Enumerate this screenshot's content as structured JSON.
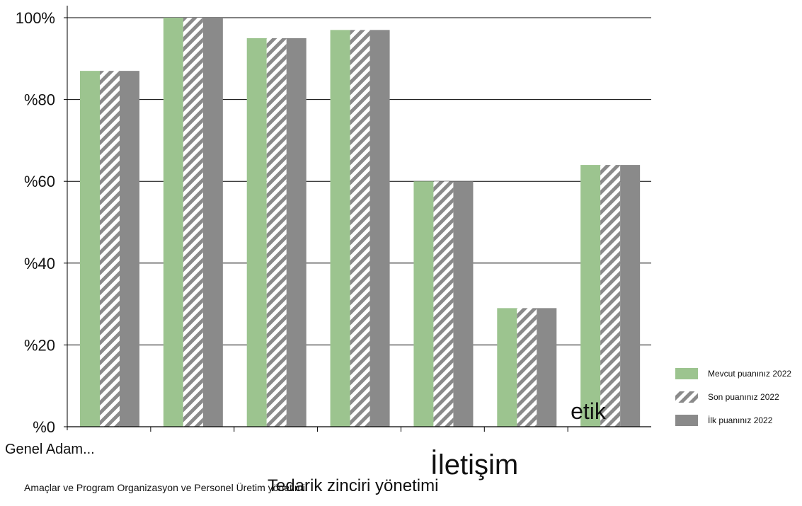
{
  "chart_data": {
    "type": "bar",
    "y_tick_labels": [
      "%0",
      "%20",
      "%40",
      "%60",
      "%80",
      "100%"
    ],
    "ylim": [
      0,
      100
    ],
    "grid": true,
    "legend_position": "right",
    "series": [
      {
        "name": "Mevcut puanınız 2022",
        "values": [
          87,
          100,
          95,
          97,
          60,
          29,
          64
        ],
        "color": "#9cc48f",
        "pattern": "solid"
      },
      {
        "name": "Son puanınız 2022",
        "values": [
          87,
          100,
          95,
          97,
          60,
          29,
          64
        ],
        "color": "#8a8a8a",
        "pattern": "hatched"
      },
      {
        "name": "İlk puanınız 2022",
        "values": [
          87,
          100,
          95,
          97,
          60,
          29,
          64
        ],
        "color": "#8a8a8a",
        "pattern": "solid"
      }
    ],
    "category_texts": {
      "genel": "Genel Adam...",
      "iletisim": "İletişim",
      "etik": "etik",
      "tedarik": "Tedarik zinciri yönetimi",
      "small_row": "Amaçlar ve Program Organizasyon ve Personel Üretim yönetimi"
    }
  }
}
